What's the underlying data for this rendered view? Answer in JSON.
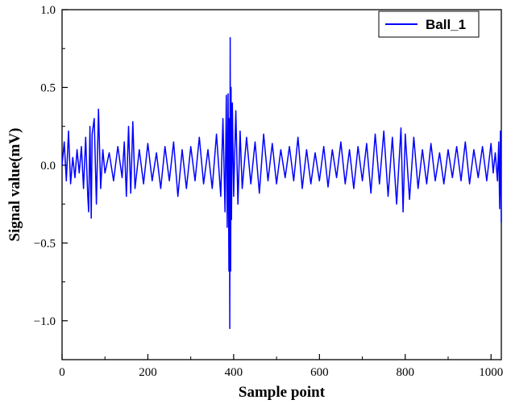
{
  "chart_data": {
    "type": "line",
    "title": "",
    "xlabel": "Sample point",
    "ylabel": "Signal value(mV)",
    "xlim": [
      0,
      1024
    ],
    "ylim": [
      -1.25,
      1.0
    ],
    "xticks": [
      0,
      200,
      400,
      600,
      800,
      1000
    ],
    "yticks": [
      1.0,
      0.5,
      0.0,
      -0.5,
      -1.0
    ],
    "ytick_labels": [
      "1.0",
      "0.5",
      "0.0",
      "−0.5",
      "−1.0"
    ],
    "grid": false,
    "legend_position": "top-right",
    "series": [
      {
        "name": "Ball_1",
        "color": "#0000ff",
        "x": [
          0,
          5,
          10,
          15,
          20,
          25,
          30,
          35,
          40,
          45,
          50,
          55,
          60,
          62,
          65,
          68,
          70,
          75,
          80,
          85,
          90,
          95,
          100,
          110,
          120,
          130,
          140,
          145,
          150,
          155,
          160,
          165,
          170,
          180,
          190,
          200,
          210,
          220,
          230,
          240,
          250,
          260,
          270,
          280,
          290,
          300,
          310,
          320,
          330,
          340,
          350,
          360,
          370,
          375,
          380,
          383,
          385,
          387,
          389,
          390,
          391,
          392,
          393,
          394,
          395,
          397,
          400,
          405,
          410,
          415,
          420,
          430,
          440,
          450,
          460,
          470,
          480,
          490,
          500,
          510,
          520,
          530,
          540,
          550,
          560,
          570,
          580,
          590,
          600,
          610,
          620,
          630,
          640,
          650,
          660,
          670,
          680,
          690,
          700,
          710,
          720,
          730,
          740,
          750,
          760,
          770,
          780,
          790,
          795,
          800,
          810,
          820,
          830,
          840,
          850,
          860,
          870,
          880,
          890,
          900,
          910,
          920,
          930,
          940,
          950,
          960,
          970,
          980,
          990,
          1000,
          1005,
          1010,
          1015,
          1018,
          1020,
          1022,
          1024
        ],
        "y": [
          0.0,
          0.15,
          -0.1,
          0.22,
          -0.12,
          0.05,
          -0.08,
          0.1,
          -0.05,
          0.12,
          -0.15,
          0.18,
          -0.2,
          -0.3,
          0.25,
          -0.34,
          0.2,
          0.3,
          -0.25,
          0.36,
          -0.15,
          0.1,
          -0.05,
          0.08,
          -0.1,
          0.12,
          -0.08,
          0.15,
          -0.2,
          0.25,
          -0.18,
          0.28,
          -0.15,
          0.1,
          -0.12,
          0.14,
          -0.1,
          0.08,
          -0.15,
          0.12,
          -0.1,
          0.15,
          -0.2,
          0.1,
          -0.15,
          0.12,
          -0.1,
          0.18,
          -0.12,
          0.1,
          -0.15,
          0.2,
          -0.2,
          0.3,
          -0.3,
          0.45,
          -0.4,
          0.46,
          -0.68,
          0.3,
          -1.05,
          0.82,
          -0.68,
          0.5,
          -0.35,
          0.4,
          -0.2,
          0.35,
          -0.25,
          0.22,
          -0.15,
          0.18,
          -0.12,
          0.15,
          -0.18,
          0.2,
          -0.1,
          0.14,
          -0.12,
          0.1,
          -0.08,
          0.12,
          -0.1,
          0.18,
          -0.15,
          0.1,
          -0.12,
          0.08,
          -0.1,
          0.12,
          -0.14,
          0.1,
          -0.08,
          0.15,
          -0.12,
          0.1,
          -0.15,
          0.12,
          -0.1,
          0.14,
          -0.18,
          0.2,
          -0.12,
          0.22,
          -0.2,
          0.18,
          -0.25,
          0.24,
          -0.3,
          0.2,
          -0.22,
          0.18,
          -0.15,
          0.1,
          -0.12,
          0.14,
          -0.1,
          0.08,
          -0.12,
          0.1,
          -0.08,
          0.12,
          -0.1,
          0.15,
          -0.12,
          0.1,
          -0.08,
          0.12,
          -0.1,
          0.14,
          -0.05,
          0.08,
          -0.1,
          0.15,
          -0.28,
          0.22,
          -0.37
        ]
      }
    ]
  }
}
